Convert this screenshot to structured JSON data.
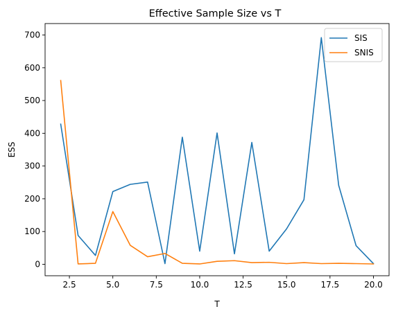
{
  "chart_data": {
    "type": "line",
    "title": "Effective Sample Size vs T",
    "xlabel": "T",
    "ylabel": "ESS",
    "xlim": [
      1.1,
      20.9
    ],
    "ylim": [
      -35,
      735
    ],
    "xticks": [
      2.5,
      5.0,
      7.5,
      10.0,
      12.5,
      15.0,
      17.5,
      20.0
    ],
    "xtick_labels": [
      "2.5",
      "5.0",
      "7.5",
      "10.0",
      "12.5",
      "15.0",
      "17.5",
      "20.0"
    ],
    "yticks": [
      0,
      100,
      200,
      300,
      400,
      500,
      600,
      700
    ],
    "ytick_labels": [
      "0",
      "100",
      "200",
      "300",
      "400",
      "500",
      "600",
      "700"
    ],
    "grid": false,
    "legend_position": "top-right",
    "x": [
      2,
      3,
      4,
      5,
      6,
      7,
      8,
      9,
      10,
      11,
      12,
      13,
      14,
      15,
      16,
      17,
      18,
      19,
      20
    ],
    "series": [
      {
        "name": "SIS",
        "color": "#1f77b4",
        "values": [
          428,
          88,
          27,
          222,
          244,
          251,
          2,
          388,
          40,
          401,
          32,
          372,
          40,
          108,
          197,
          692,
          241,
          57,
          2
        ]
      },
      {
        "name": "SNIS",
        "color": "#ff7f0e",
        "values": [
          561,
          1,
          3,
          161,
          58,
          23,
          33,
          3,
          1,
          9,
          11,
          5,
          6,
          2,
          5,
          2,
          3,
          2,
          1
        ]
      }
    ]
  }
}
